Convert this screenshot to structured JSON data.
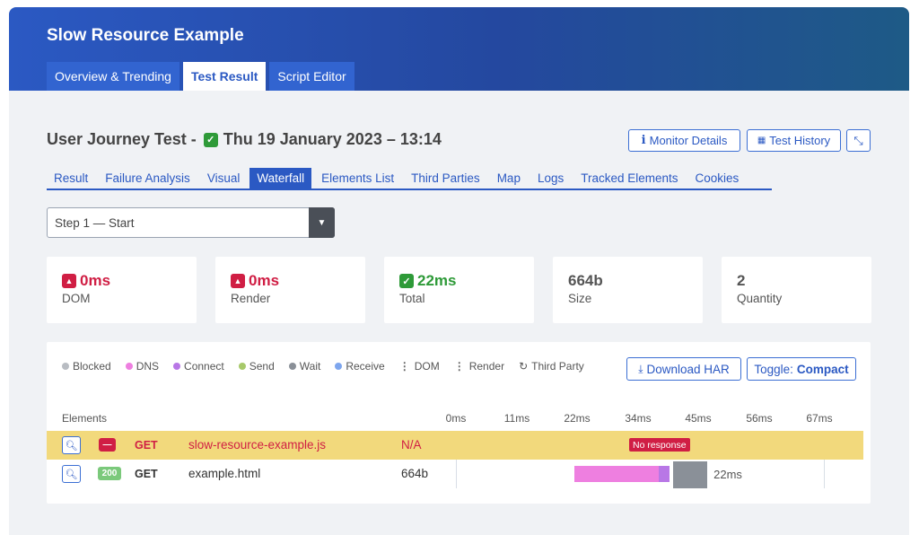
{
  "app": {
    "title": "Slow Resource Example"
  },
  "main_tabs": [
    {
      "label": "Overview & Trending"
    },
    {
      "label": "Test Result"
    },
    {
      "label": "Script Editor"
    }
  ],
  "test": {
    "type_label": "User Journey Test -",
    "date": "Thu 19 January 2023 – 13:14",
    "status_icon": "check-icon"
  },
  "header_buttons": {
    "monitor_details": "Monitor Details",
    "test_history": "Test History"
  },
  "sub_tabs": [
    {
      "label": "Result"
    },
    {
      "label": "Failure Analysis"
    },
    {
      "label": "Visual"
    },
    {
      "label": "Waterfall"
    },
    {
      "label": "Elements List"
    },
    {
      "label": "Third Parties"
    },
    {
      "label": "Map"
    },
    {
      "label": "Logs"
    },
    {
      "label": "Tracked Elements"
    },
    {
      "label": "Cookies"
    }
  ],
  "step_select": {
    "value": "Step 1 — Start"
  },
  "stats": [
    {
      "value": "0ms",
      "label": "DOM",
      "status": "warning"
    },
    {
      "value": "0ms",
      "label": "Render",
      "status": "warning"
    },
    {
      "value": "22ms",
      "label": "Total",
      "status": "ok"
    },
    {
      "value": "664b",
      "label": "Size",
      "status": "none"
    },
    {
      "value": "2",
      "label": "Quantity",
      "status": "none"
    }
  ],
  "legend": [
    {
      "label": "Blocked",
      "color": "#b8bcc2"
    },
    {
      "label": "DNS",
      "color": "#ee7fe0"
    },
    {
      "label": "Connect",
      "color": "#b877e6"
    },
    {
      "label": "Send",
      "color": "#a7c96a"
    },
    {
      "label": "Wait",
      "color": "#8a9098"
    },
    {
      "label": "Receive",
      "color": "#7ea6ee"
    }
  ],
  "legend_markers": {
    "dom": "DOM",
    "render": "Render",
    "third_party": "Third Party"
  },
  "panel_buttons": {
    "download_har": "Download HAR",
    "toggle_prefix": "Toggle:",
    "toggle_value": "Compact"
  },
  "table": {
    "elements_header": "Elements",
    "ticks": [
      "0ms",
      "11ms",
      "22ms",
      "34ms",
      "45ms",
      "56ms",
      "67ms"
    ],
    "rows": [
      {
        "status": "—",
        "method": "GET",
        "name": "slow-resource-example.js",
        "size": "N/A",
        "note": "No response"
      },
      {
        "status": "200",
        "method": "GET",
        "name": "example.html",
        "size": "664b",
        "time": "22ms",
        "timing": {
          "dns_ms": [
            19.5,
            33.5
          ],
          "connect_ms": [
            33.5,
            35.2
          ],
          "wait_ms": [
            35.8,
            41.5
          ]
        }
      }
    ]
  },
  "colors": {
    "accent": "#2b59c3",
    "error": "#d01e44",
    "success": "#2e9a38",
    "failed_row": "#f2d97c"
  }
}
